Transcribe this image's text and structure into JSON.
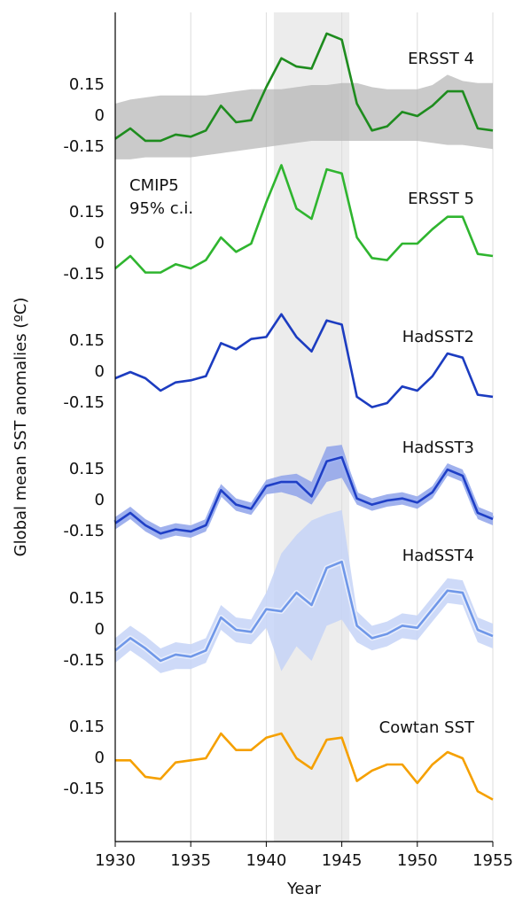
{
  "chart_data": [
    {
      "type": "line",
      "label": "ERSST 4",
      "color": "#1e8c1e",
      "ylabel": "Global mean SST anomalies (ºC)",
      "shade": [
        1940.5,
        1945.5
      ],
      "x": [
        1930,
        1931,
        1932,
        1933,
        1934,
        1935,
        1936,
        1937,
        1938,
        1939,
        1940,
        1941,
        1942,
        1943,
        1944,
        1945,
        1946,
        1947,
        1948,
        1949,
        1950,
        1951,
        1952,
        1953,
        1954,
        1955
      ],
      "values": [
        -0.11,
        -0.06,
        -0.12,
        -0.12,
        -0.09,
        -0.1,
        -0.07,
        0.05,
        -0.03,
        -0.02,
        0.14,
        0.28,
        0.24,
        0.23,
        0.4,
        0.37,
        0.06,
        -0.07,
        -0.05,
        0.02,
        0,
        0.05,
        0.12,
        0.12,
        -0.06,
        -0.07
      ],
      "band": {
        "label": [
          "CMIP5",
          "95% c.i."
        ],
        "color": "#b4b4b4",
        "lower": [
          -0.21,
          -0.21,
          -0.2,
          -0.2,
          -0.2,
          -0.2,
          -0.19,
          -0.18,
          -0.17,
          -0.16,
          -0.15,
          -0.14,
          -0.13,
          -0.12,
          -0.12,
          -0.12,
          -0.12,
          -0.12,
          -0.12,
          -0.12,
          -0.12,
          -0.13,
          -0.14,
          -0.14,
          -0.15,
          -0.16
        ],
        "upper": [
          0.06,
          0.08,
          0.09,
          0.1,
          0.1,
          0.1,
          0.1,
          0.11,
          0.12,
          0.13,
          0.13,
          0.13,
          0.14,
          0.15,
          0.15,
          0.16,
          0.16,
          0.14,
          0.13,
          0.13,
          0.13,
          0.15,
          0.2,
          0.17,
          0.16,
          0.16
        ]
      },
      "xlim": [
        1930,
        1955
      ],
      "ylim": [
        -0.5,
        0.5
      ],
      "yticks": [
        0.15,
        0,
        -0.15
      ]
    },
    {
      "type": "line",
      "label": "ERSST 5",
      "color": "#2fb52f",
      "x": [
        1930,
        1931,
        1932,
        1933,
        1934,
        1935,
        1936,
        1937,
        1938,
        1939,
        1940,
        1941,
        1942,
        1943,
        1944,
        1945,
        1946,
        1947,
        1948,
        1949,
        1950,
        1951,
        1952,
        1953,
        1954,
        1955
      ],
      "values": [
        -0.12,
        -0.06,
        -0.14,
        -0.14,
        -0.1,
        -0.12,
        -0.08,
        0.03,
        -0.04,
        0,
        0.2,
        0.38,
        0.17,
        0.12,
        0.36,
        0.34,
        0.03,
        -0.07,
        -0.08,
        0,
        0,
        0.07,
        0.13,
        0.13,
        -0.05,
        -0.06
      ],
      "xlim": [
        1930,
        1955
      ],
      "ylim": [
        -0.5,
        0.5
      ],
      "yticks": [
        0.15,
        0,
        -0.15
      ]
    },
    {
      "type": "line",
      "label": "HadSST2",
      "color": "#1c3cc0",
      "x": [
        1930,
        1931,
        1932,
        1933,
        1934,
        1935,
        1936,
        1937,
        1938,
        1939,
        1940,
        1941,
        1942,
        1943,
        1944,
        1945,
        1946,
        1947,
        1948,
        1949,
        1950,
        1951,
        1952,
        1953,
        1954,
        1955
      ],
      "values": [
        -0.03,
        0,
        -0.03,
        -0.09,
        -0.05,
        -0.04,
        -0.02,
        0.14,
        0.11,
        0.16,
        0.17,
        0.28,
        0.17,
        0.1,
        0.25,
        0.23,
        -0.12,
        -0.17,
        -0.15,
        -0.07,
        -0.09,
        -0.02,
        0.09,
        0.07,
        -0.11,
        -0.12
      ],
      "xlim": [
        1930,
        1955
      ],
      "ylim": [
        -0.5,
        0.5
      ],
      "yticks": [
        0.15,
        0,
        -0.15
      ]
    },
    {
      "type": "line",
      "label": "HadSST3",
      "color": "#1f3fc6",
      "x": [
        1930,
        1931,
        1932,
        1933,
        1934,
        1935,
        1936,
        1937,
        1938,
        1939,
        1940,
        1941,
        1942,
        1943,
        1944,
        1945,
        1946,
        1947,
        1948,
        1949,
        1950,
        1951,
        1952,
        1953,
        1954,
        1955
      ],
      "values": [
        -0.11,
        -0.06,
        -0.12,
        -0.16,
        -0.14,
        -0.15,
        -0.12,
        0.05,
        -0.02,
        -0.04,
        0.07,
        0.09,
        0.09,
        0.02,
        0.19,
        0.21,
        0.01,
        -0.02,
        0,
        0.01,
        -0.01,
        0.04,
        0.15,
        0.12,
        -0.06,
        -0.09
      ],
      "band": {
        "color": "#8fa3ea",
        "lower": [
          -0.14,
          -0.09,
          -0.15,
          -0.19,
          -0.17,
          -0.18,
          -0.15,
          0.02,
          -0.05,
          -0.07,
          0.03,
          0.04,
          0.02,
          -0.02,
          0.09,
          0.11,
          -0.02,
          -0.05,
          -0.03,
          -0.02,
          -0.04,
          0.01,
          0.12,
          0.09,
          -0.09,
          -0.12
        ],
        "upper": [
          -0.08,
          -0.03,
          -0.09,
          -0.13,
          -0.11,
          -0.12,
          -0.09,
          0.08,
          0.01,
          -0.01,
          0.1,
          0.12,
          0.13,
          0.09,
          0.26,
          0.27,
          0.04,
          0.01,
          0.03,
          0.04,
          0.02,
          0.07,
          0.18,
          0.15,
          -0.03,
          -0.06
        ]
      },
      "xlim": [
        1930,
        1955
      ],
      "ylim": [
        -0.5,
        0.5
      ],
      "yticks": [
        0.15,
        0,
        -0.15
      ]
    },
    {
      "type": "line",
      "label": "HadSST4",
      "color": "#6f97e8",
      "x": [
        1930,
        1931,
        1932,
        1933,
        1934,
        1935,
        1936,
        1937,
        1938,
        1939,
        1940,
        1941,
        1942,
        1943,
        1944,
        1945,
        1946,
        1947,
        1948,
        1949,
        1950,
        1951,
        1952,
        1953,
        1954,
        1955
      ],
      "values": [
        -0.1,
        -0.04,
        -0.09,
        -0.15,
        -0.12,
        -0.13,
        -0.1,
        0.06,
        0,
        -0.01,
        0.1,
        0.09,
        0.18,
        0.12,
        0.3,
        0.33,
        0.02,
        -0.04,
        -0.02,
        0.02,
        0.01,
        0.1,
        0.19,
        0.18,
        0,
        -0.03
      ],
      "band": {
        "color": "#c6d4f7",
        "lower": [
          -0.16,
          -0.1,
          -0.15,
          -0.21,
          -0.19,
          -0.19,
          -0.16,
          0,
          -0.06,
          -0.07,
          0.01,
          -0.2,
          -0.08,
          -0.15,
          0.02,
          0.05,
          -0.06,
          -0.1,
          -0.08,
          -0.04,
          -0.05,
          0.04,
          0.13,
          0.12,
          -0.06,
          -0.09
        ],
        "upper": [
          -0.04,
          0.02,
          -0.03,
          -0.09,
          -0.06,
          -0.07,
          -0.04,
          0.12,
          0.06,
          0.05,
          0.18,
          0.37,
          0.46,
          0.53,
          0.56,
          0.58,
          0.09,
          0.02,
          0.04,
          0.08,
          0.07,
          0.16,
          0.25,
          0.24,
          0.06,
          0.03
        ]
      },
      "xlim": [
        1930,
        1955
      ],
      "ylim": [
        -0.5,
        0.5
      ],
      "yticks": [
        0.15,
        0,
        -0.15
      ]
    },
    {
      "type": "line",
      "label": "Cowtan SST",
      "color": "#f5a000",
      "x": [
        1930,
        1931,
        1932,
        1933,
        1934,
        1935,
        1936,
        1937,
        1938,
        1939,
        1940,
        1941,
        1942,
        1943,
        1944,
        1945,
        1946,
        1947,
        1948,
        1949,
        1950,
        1951,
        1952,
        1953,
        1954,
        1955
      ],
      "values": [
        -0.01,
        -0.01,
        -0.09,
        -0.1,
        -0.02,
        -0.01,
        0,
        0.12,
        0.04,
        0.04,
        0.1,
        0.12,
        0,
        -0.05,
        0.09,
        0.1,
        -0.11,
        -0.06,
        -0.03,
        -0.03,
        -0.12,
        -0.03,
        0.03,
        0,
        -0.16,
        -0.2
      ],
      "xlim": [
        1930,
        1955
      ],
      "ylim": [
        -0.5,
        0.5
      ],
      "yticks": [
        0.15,
        0,
        -0.15
      ],
      "xticks": [
        1930,
        1935,
        1940,
        1945,
        1950,
        1955
      ],
      "xlabel": "Year"
    }
  ]
}
